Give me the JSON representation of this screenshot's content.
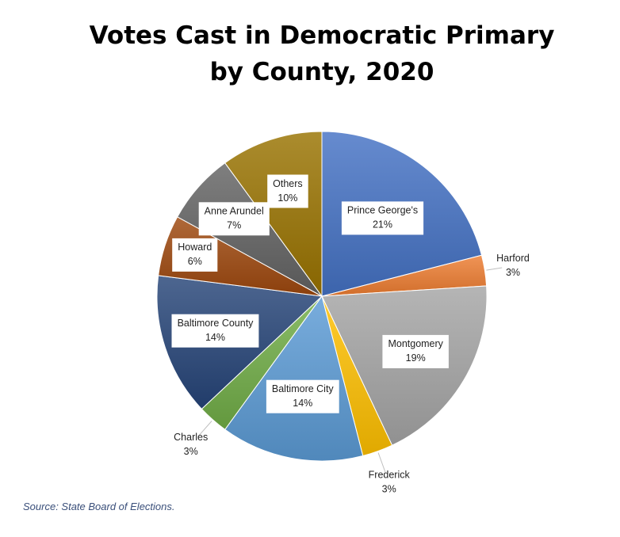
{
  "chart_data": {
    "type": "pie",
    "title_lines": [
      "Votes Cast in Democratic Primary",
      "by County, 2020"
    ],
    "source": "Source: State Board of Elections.",
    "slices": [
      {
        "name": "Prince George's",
        "value": 21,
        "label": "21%",
        "color": "#4472C4",
        "label_style": "boxed"
      },
      {
        "name": "Harford",
        "value": 3,
        "label": "3%",
        "color": "#ED7D31",
        "label_style": "outside"
      },
      {
        "name": "Montgomery",
        "value": 19,
        "label": "19%",
        "color": "#A5A5A5",
        "label_style": "boxed"
      },
      {
        "name": "Frederick",
        "value": 3,
        "label": "3%",
        "color": "#FFC000",
        "label_style": "outside"
      },
      {
        "name": "Baltimore City",
        "value": 14,
        "label": "14%",
        "color": "#5B9BD5",
        "label_style": "boxed"
      },
      {
        "name": "Charles",
        "value": 3,
        "label": "3%",
        "color": "#70AD47",
        "label_style": "outside"
      },
      {
        "name": "Baltimore County",
        "value": 14,
        "label": "14%",
        "color": "#264478",
        "label_style": "boxed"
      },
      {
        "name": "Howard",
        "value": 6,
        "label": "6%",
        "color": "#9E480E",
        "label_style": "boxed"
      },
      {
        "name": "Anne Arundel",
        "value": 7,
        "label": "7%",
        "color": "#636363",
        "label_style": "boxed"
      },
      {
        "name": "Others",
        "value": 10,
        "label": "10%",
        "color": "#997300",
        "label_style": "boxed"
      }
    ],
    "start_angle_deg": 0,
    "direction": "clockwise",
    "legend": "none"
  }
}
